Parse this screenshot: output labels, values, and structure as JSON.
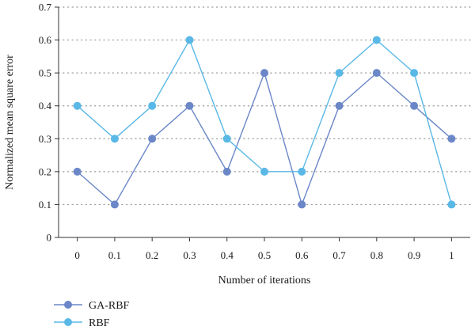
{
  "chart_data": {
    "type": "line",
    "xlabel": "Number of iterations",
    "ylabel": "Normalized mean square error",
    "x_ticks": [
      "0",
      "0.1",
      "0.2",
      "0.3",
      "0.4",
      "0.5",
      "0.6",
      "0.7",
      "0.8",
      "0.9",
      "1"
    ],
    "x": [
      0,
      0.1,
      0.2,
      0.3,
      0.4,
      0.5,
      0.6,
      0.7,
      0.8,
      0.9,
      1
    ],
    "y_ticks": [
      "0",
      "0.1",
      "0.2",
      "0.3",
      "0.4",
      "0.5",
      "0.6",
      "0.7"
    ],
    "xlim": [
      -0.05,
      1.05
    ],
    "ylim": [
      0,
      0.7
    ],
    "grid": "horizontal dotted",
    "legend_position": "bottom-left",
    "series": [
      {
        "name": "GA-RBF",
        "color": "#6b87c8",
        "values": [
          0.2,
          0.1,
          0.3,
          0.4,
          0.2,
          0.5,
          0.1,
          0.4,
          0.5,
          0.4,
          0.3
        ]
      },
      {
        "name": "RBF",
        "color": "#5ab8e6",
        "values": [
          0.4,
          0.3,
          0.4,
          0.6,
          0.3,
          0.2,
          0.2,
          0.5,
          0.6,
          0.5,
          0.1
        ]
      }
    ]
  }
}
